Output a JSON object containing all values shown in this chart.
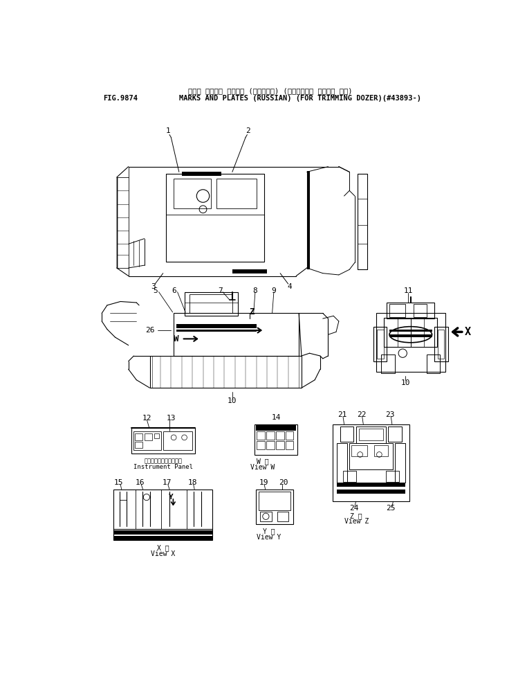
{
  "title_japanese": "マーク オヤビ゛ プレート (ロシアゴ゛) (トリミング゛ ドーザー ヨウ)",
  "title_english": "MARKS AND PLATES (RUSSIAN) (FOR TRIMMING DOZER)(#43893-)",
  "fig_number": "FIG.9874",
  "bg_color": "#ffffff",
  "line_color": "#000000"
}
